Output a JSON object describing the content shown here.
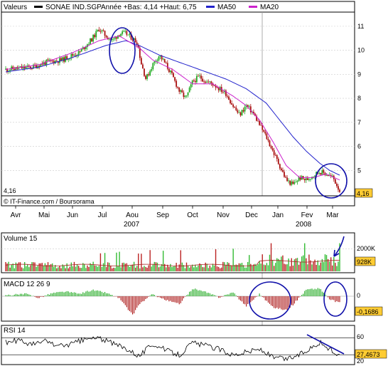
{
  "header": {
    "label": "Valeurs",
    "symbol": "SONAE IND.SGP",
    "stats": "Année +Bas: 4,14 +Haut: 6,75",
    "ma50_label": "MA50",
    "ma20_label": "MA20",
    "price_label": "4,16",
    "current_price": "4,16",
    "source": "© IT-Finance.com / Boursorama"
  },
  "colors": {
    "candle_up": "#22aa22",
    "candle_down": "#aa1111",
    "ma50": "#2222cc",
    "ma20": "#cc22cc",
    "volume_bar": "#33bb33",
    "volume_down": "#bb2222",
    "annotation": "#1111aa",
    "price_tag": "#ffcc33"
  },
  "chart_data": [
    {
      "type": "line",
      "subtype": "candlestick",
      "ylim": [
        4,
        11.5
      ],
      "y_ticks": [
        "11",
        "10",
        "9",
        "8",
        "7",
        "6",
        "5"
      ],
      "x_labels": [
        "Avr",
        "Mai",
        "Jun",
        "Jul",
        "Aou",
        "Sep",
        "Oct",
        "Nov",
        "Dec",
        "Jan",
        "Fev",
        "Mar"
      ],
      "year_labels": [
        "2007",
        "2008"
      ],
      "price_anchors": [
        [
          0,
          9.2
        ],
        [
          8,
          9.3
        ],
        [
          12,
          9.5
        ],
        [
          17,
          9.6
        ],
        [
          20,
          9.8
        ],
        [
          22,
          9.9
        ],
        [
          24,
          10.2
        ],
        [
          26,
          10.5
        ],
        [
          28,
          10.9
        ],
        [
          30,
          10.6
        ],
        [
          32,
          10.4
        ],
        [
          34,
          10.7
        ],
        [
          36,
          10.7
        ],
        [
          38,
          10.5
        ],
        [
          39.5,
          10.3
        ],
        [
          40.5,
          9.5
        ],
        [
          42,
          8.8
        ],
        [
          44,
          9.4
        ],
        [
          46,
          9.8
        ],
        [
          48,
          9.4
        ],
        [
          50,
          8.9
        ],
        [
          52,
          8.3
        ],
        [
          54,
          8.0
        ],
        [
          56,
          8.7
        ],
        [
          58,
          8.9
        ],
        [
          60,
          8.7
        ],
        [
          62,
          8.6
        ],
        [
          64,
          8.4
        ],
        [
          66,
          8.2
        ],
        [
          68,
          7.7
        ],
        [
          70,
          7.3
        ],
        [
          72,
          7.7
        ],
        [
          74,
          7.4
        ],
        [
          76,
          6.9
        ],
        [
          78,
          6.4
        ],
        [
          80,
          5.8
        ],
        [
          82,
          5.2
        ],
        [
          84,
          4.6
        ],
        [
          86,
          4.4
        ],
        [
          88,
          4.7
        ],
        [
          90,
          4.6
        ],
        [
          92,
          4.8
        ],
        [
          94,
          4.95
        ],
        [
          96,
          4.85
        ],
        [
          98,
          4.7
        ],
        [
          100,
          4.16
        ]
      ],
      "ma50_anchors": [
        [
          0,
          9.1
        ],
        [
          10,
          9.3
        ],
        [
          20,
          9.7
        ],
        [
          30,
          10.2
        ],
        [
          36,
          10.4
        ],
        [
          40,
          10.2
        ],
        [
          46,
          9.8
        ],
        [
          52,
          9.5
        ],
        [
          60,
          9.1
        ],
        [
          66,
          8.8
        ],
        [
          72,
          8.4
        ],
        [
          78,
          7.8
        ],
        [
          82,
          7.1
        ],
        [
          86,
          6.4
        ],
        [
          90,
          5.8
        ],
        [
          94,
          5.3
        ],
        [
          97,
          5.0
        ],
        [
          100,
          4.8
        ]
      ],
      "ma20_anchors": [
        [
          0,
          9.2
        ],
        [
          10,
          9.4
        ],
        [
          20,
          9.9
        ],
        [
          28,
          10.4
        ],
        [
          34,
          10.6
        ],
        [
          40,
          10.1
        ],
        [
          44,
          9.6
        ],
        [
          50,
          9.2
        ],
        [
          56,
          8.6
        ],
        [
          62,
          8.6
        ],
        [
          68,
          8.1
        ],
        [
          72,
          7.7
        ],
        [
          76,
          7.1
        ],
        [
          80,
          6.2
        ],
        [
          84,
          5.2
        ],
        [
          88,
          4.7
        ],
        [
          92,
          4.7
        ],
        [
          96,
          4.85
        ],
        [
          100,
          4.6
        ]
      ]
    },
    {
      "type": "bar",
      "title": "Volume 15",
      "y_ticks": [
        "2000K"
      ],
      "current_value": "928K",
      "ylim": [
        0,
        2600
      ]
    },
    {
      "type": "bar",
      "title": "MACD 12 26 9",
      "y_ticks": [
        "0"
      ],
      "current_value": "-0,1686",
      "ylim": [
        -0.6,
        0.4
      ],
      "macd_anchors": [
        [
          0,
          0.02
        ],
        [
          6,
          0.06
        ],
        [
          10,
          -0.04
        ],
        [
          14,
          0.08
        ],
        [
          18,
          0.12
        ],
        [
          22,
          0.06
        ],
        [
          26,
          0.16
        ],
        [
          30,
          0.09
        ],
        [
          34,
          -0.05
        ],
        [
          38,
          -0.48
        ],
        [
          40,
          -0.2
        ],
        [
          44,
          0.05
        ],
        [
          48,
          -0.1
        ],
        [
          52,
          -0.2
        ],
        [
          56,
          0.2
        ],
        [
          60,
          0.1
        ],
        [
          64,
          -0.03
        ],
        [
          68,
          0.1
        ],
        [
          72,
          -0.25
        ],
        [
          76,
          0.06
        ],
        [
          80,
          -0.28
        ],
        [
          84,
          -0.35
        ],
        [
          86,
          -0.22
        ],
        [
          90,
          0.17
        ],
        [
          94,
          0.2
        ],
        [
          97,
          -0.08
        ],
        [
          100,
          -0.17
        ]
      ]
    },
    {
      "type": "line",
      "title": "RSI 14",
      "y_ticks": [
        "60",
        "20"
      ],
      "current_value": "27,4673",
      "ylim": [
        15,
        80
      ],
      "rsi_anchors": [
        [
          0,
          52
        ],
        [
          4,
          56
        ],
        [
          8,
          48
        ],
        [
          12,
          55
        ],
        [
          16,
          45
        ],
        [
          20,
          50
        ],
        [
          24,
          58
        ],
        [
          28,
          60
        ],
        [
          32,
          50
        ],
        [
          36,
          42
        ],
        [
          40,
          28
        ],
        [
          44,
          50
        ],
        [
          48,
          38
        ],
        [
          52,
          30
        ],
        [
          56,
          52
        ],
        [
          60,
          46
        ],
        [
          64,
          40
        ],
        [
          68,
          30
        ],
        [
          72,
          35
        ],
        [
          76,
          40
        ],
        [
          80,
          25
        ],
        [
          84,
          22
        ],
        [
          88,
          30
        ],
        [
          92,
          45
        ],
        [
          94,
          52
        ],
        [
          97,
          40
        ],
        [
          100,
          27
        ]
      ]
    }
  ]
}
